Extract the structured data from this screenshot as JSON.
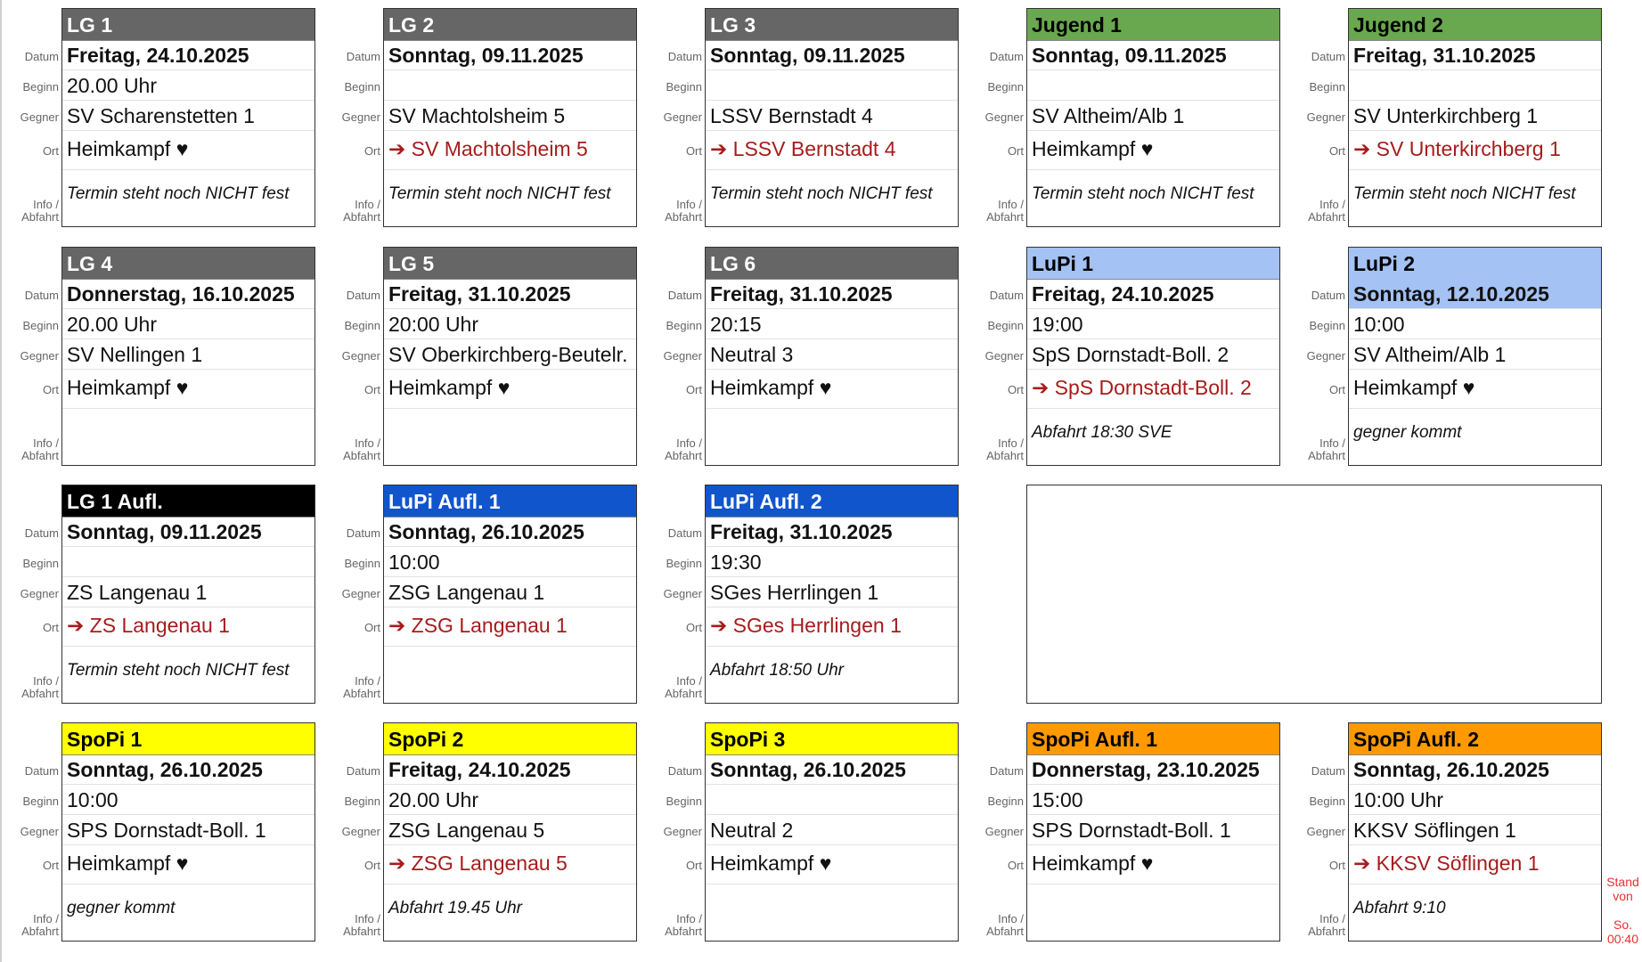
{
  "labels": {
    "date": "Datum",
    "begin": "Beginn",
    "opponent": "Gegner",
    "location": "Ort",
    "info1": "Info /",
    "info2": "Abfahrt"
  },
  "header_styles": {
    "gray": {
      "bg": "#666666",
      "fg": "#ffffff"
    },
    "green": {
      "bg": "#6aa84f",
      "fg": "#000000"
    },
    "lightblue": {
      "bg": "#a4c2f4",
      "fg": "#000000"
    },
    "black": {
      "bg": "#000000",
      "fg": "#ffffff"
    },
    "blue": {
      "bg": "#1155cc",
      "fg": "#ffffff"
    },
    "yellow": {
      "bg": "#ffff00",
      "fg": "#000000"
    },
    "orange": {
      "bg": "#ff9900",
      "fg": "#000000"
    }
  },
  "away_color": "#a61c1c",
  "cards": [
    {
      "title": "LG 1",
      "style": "gray",
      "date": "Freitag, 24.10.2025",
      "begin": "20.00 Uhr",
      "opponent": "SV Scharenstetten 1",
      "location": "Heimkampf ♥",
      "away": false,
      "info": "Termin steht noch NICHT fest"
    },
    {
      "title": "LG 2",
      "style": "gray",
      "date": "Sonntag, 09.11.2025",
      "begin": "",
      "opponent": "SV Machtolsheim 5",
      "location": "➔ SV Machtolsheim 5",
      "away": true,
      "info": "Termin steht noch NICHT fest"
    },
    {
      "title": "LG 3",
      "style": "gray",
      "date": "Sonntag, 09.11.2025",
      "begin": "",
      "opponent": "LSSV Bernstadt 4",
      "location": "➔ LSSV Bernstadt 4",
      "away": true,
      "info": "Termin steht noch NICHT fest"
    },
    {
      "title": "Jugend 1",
      "style": "green",
      "date": "Sonntag, 09.11.2025",
      "begin": "",
      "opponent": "SV Altheim/Alb 1",
      "location": "Heimkampf ♥",
      "away": false,
      "info": "Termin steht noch NICHT fest"
    },
    {
      "title": "Jugend 2",
      "style": "green",
      "date": "Freitag, 31.10.2025",
      "begin": "",
      "opponent": "SV Unterkirchberg 1",
      "location": "➔ SV Unterkirchberg 1",
      "away": true,
      "info": "Termin steht noch NICHT fest"
    },
    {
      "title": "LG 4",
      "style": "gray",
      "date": "Donnerstag, 16.10.2025",
      "begin": "20.00 Uhr",
      "opponent": "SV Nellingen 1",
      "location": "Heimkampf ♥",
      "away": false,
      "info": ""
    },
    {
      "title": "LG 5",
      "style": "gray",
      "date": "Freitag, 31.10.2025",
      "begin": "20:00 Uhr",
      "opponent": "SV Oberkirchberg-Beutelr.",
      "location": "Heimkampf ♥",
      "away": false,
      "info": ""
    },
    {
      "title": "LG 6",
      "style": "gray",
      "date": "Freitag, 31.10.2025",
      "begin": "20:15",
      "opponent": "Neutral 3",
      "location": "Heimkampf ♥",
      "away": false,
      "info": ""
    },
    {
      "title": "LuPi 1",
      "style": "lightblue",
      "date": "Freitag, 24.10.2025",
      "begin": "19:00",
      "opponent": "SpS Dornstadt-Boll. 2",
      "location": "➔ SpS Dornstadt-Boll. 2",
      "away": true,
      "info": "Abfahrt 18:30 SVE"
    },
    {
      "title": "LuPi 2",
      "style": "lightblue",
      "date_highlight": true,
      "date": "Sonntag, 12.10.2025",
      "begin": "10:00",
      "opponent": "SV Altheim/Alb 1",
      "location": "Heimkampf ♥",
      "away": false,
      "info": "gegner kommt"
    },
    {
      "title": "LG 1 Aufl.",
      "style": "black",
      "date": "Sonntag, 09.11.2025",
      "begin": "",
      "opponent": "ZS Langenau 1",
      "location": "➔ ZS Langenau 1",
      "away": true,
      "info": "Termin steht noch NICHT fest"
    },
    {
      "title": "LuPi Aufl. 1",
      "style": "blue",
      "date": "Sonntag, 26.10.2025",
      "begin": "10:00",
      "opponent": "ZSG Langenau 1",
      "location": "➔ ZSG Langenau 1",
      "away": true,
      "info": ""
    },
    {
      "title": "LuPi Aufl. 2",
      "style": "blue",
      "date": "Freitag, 31.10.2025",
      "begin": "19:30",
      "opponent": "SGes Herrlingen 1",
      "location": "➔ SGes Herrlingen 1",
      "away": true,
      "info": "Abfahrt 18:50 Uhr"
    },
    null,
    null,
    {
      "title": "SpoPi 1",
      "style": "yellow",
      "date": "Sonntag, 26.10.2025",
      "begin": "10:00",
      "opponent": "SPS Dornstadt-Boll. 1",
      "location": "Heimkampf ♥",
      "away": false,
      "info": "gegner kommt"
    },
    {
      "title": "SpoPi 2",
      "style": "yellow",
      "date": "Freitag, 24.10.2025",
      "begin": "20.00 Uhr",
      "opponent": "ZSG Langenau 5",
      "location": "➔ ZSG Langenau 5",
      "away": true,
      "info": "Abfahrt 19.45 Uhr"
    },
    {
      "title": "SpoPi 3",
      "style": "yellow",
      "date": "Sonntag, 26.10.2025",
      "begin": "",
      "opponent": "Neutral 2",
      "location": "Heimkampf ♥",
      "away": false,
      "info": ""
    },
    {
      "title": "SpoPi Aufl. 1",
      "style": "orange",
      "date": "Donnerstag, 23.10.2025",
      "begin": "15:00",
      "opponent": "SPS Dornstadt-Boll. 1",
      "location": "Heimkampf ♥",
      "away": false,
      "info": ""
    },
    {
      "title": "SpoPi Aufl. 2",
      "style": "orange",
      "date": "Sonntag, 26.10.2025",
      "begin": "10:00 Uhr",
      "opponent": "KKSV Söflingen 1",
      "location": "➔ KKSV Söflingen 1",
      "away": true,
      "info": "Abfahrt 9:10"
    }
  ],
  "stand": {
    "line1": "Stand",
    "line2": "von",
    "line3": "So.",
    "line4": "00:40"
  }
}
